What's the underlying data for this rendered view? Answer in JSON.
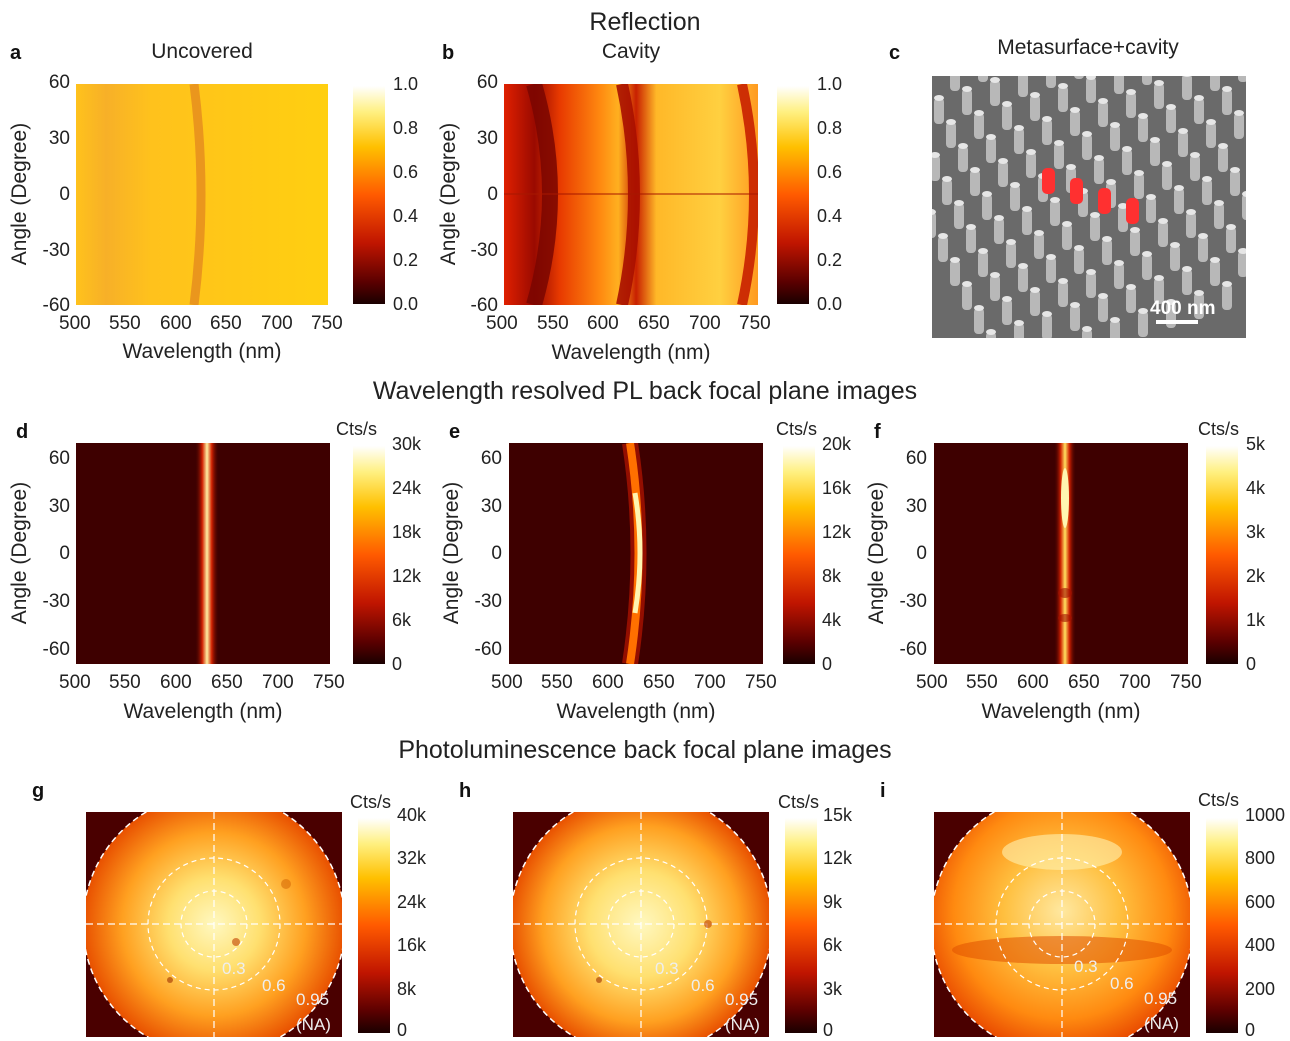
{
  "sections": {
    "reflection": "Reflection",
    "wl_resolved": "Wavelength resolved PL back focal plane images",
    "pl_bfp": "Photoluminescence back focal plane images"
  },
  "panels": {
    "a": {
      "label": "a",
      "title": "Uncovered"
    },
    "b": {
      "label": "b",
      "title": "Cavity"
    },
    "c": {
      "label": "c",
      "title": "Metasurface+cavity",
      "scalebar": "400 nm"
    },
    "d": {
      "label": "d"
    },
    "e": {
      "label": "e"
    },
    "f": {
      "label": "f"
    },
    "g": {
      "label": "g"
    },
    "h": {
      "label": "h"
    },
    "i": {
      "label": "i"
    }
  },
  "axes": {
    "xlabel": "Wavelength (nm)",
    "ylabel": "Angle (Degree)",
    "xticks": [
      "500",
      "550",
      "600",
      "650",
      "700",
      "750"
    ],
    "yticks_refl": [
      "60",
      "30",
      "0",
      "-30",
      "-60"
    ],
    "yticks_pl": [
      "60",
      "30",
      "0",
      "-30",
      "-60"
    ]
  },
  "colorbars": {
    "reflection": [
      "1.0",
      "0.8",
      "0.6",
      "0.4",
      "0.2",
      "0.0"
    ],
    "unit": "Cts/s",
    "d": [
      "30k",
      "24k",
      "18k",
      "12k",
      "6k",
      "0"
    ],
    "e": [
      "20k",
      "16k",
      "12k",
      "8k",
      "4k",
      "0"
    ],
    "f": [
      "5k",
      "4k",
      "3k",
      "2k",
      "1k",
      "0"
    ],
    "g": [
      "40k",
      "32k",
      "24k",
      "16k",
      "8k",
      "0"
    ],
    "h": [
      "15k",
      "12k",
      "9k",
      "6k",
      "3k",
      "0"
    ],
    "i": [
      "1000",
      "800",
      "600",
      "400",
      "200",
      "0"
    ]
  },
  "na_labels": [
    "0.3",
    "0.6",
    "0.95",
    "(NA)"
  ],
  "chart_data": [
    {
      "type": "heatmap",
      "panel": "a",
      "title": "Uncovered",
      "xlabel": "Wavelength (nm)",
      "ylabel": "Angle (Degree)",
      "xlim": [
        500,
        750
      ],
      "ylim": [
        -60,
        60
      ],
      "colorbar_range": [
        0,
        1.0
      ],
      "features": [
        {
          "dip_wavelength_at_0deg": 625
        }
      ]
    },
    {
      "type": "heatmap",
      "panel": "b",
      "title": "Cavity",
      "xlabel": "Wavelength (nm)",
      "ylabel": "Angle (Degree)",
      "xlim": [
        500,
        750
      ],
      "ylim": [
        -60,
        60
      ],
      "colorbar_range": [
        0,
        1.0
      ],
      "features": [
        {
          "dip_wavelength_at_0deg": 530
        },
        {
          "dip_wavelength_at_0deg": 630
        },
        {
          "dip_wavelength_at_0deg": 745
        }
      ]
    },
    {
      "type": "heatmap",
      "panel": "d",
      "xlabel": "Wavelength (nm)",
      "ylabel": "Angle (Degree)",
      "xlim": [
        500,
        750
      ],
      "ylim": [
        -70,
        70
      ],
      "colorbar_range": [
        0,
        30000
      ],
      "features": [
        {
          "emission_peak_nm": 630
        }
      ]
    },
    {
      "type": "heatmap",
      "panel": "e",
      "xlabel": "Wavelength (nm)",
      "ylabel": "Angle (Degree)",
      "xlim": [
        500,
        750
      ],
      "ylim": [
        -70,
        70
      ],
      "colorbar_range": [
        0,
        20000
      ],
      "features": [
        {
          "emission_peak_nm": 632
        }
      ]
    },
    {
      "type": "heatmap",
      "panel": "f",
      "xlabel": "Wavelength (nm)",
      "ylabel": "Angle (Degree)",
      "xlim": [
        500,
        750
      ],
      "ylim": [
        -70,
        70
      ],
      "colorbar_range": [
        0,
        5000
      ],
      "features": [
        {
          "emission_peak_nm": 630
        }
      ]
    },
    {
      "type": "heatmap",
      "panel": "g",
      "colorbar_range": [
        0,
        40000
      ],
      "na_rings": [
        0.3,
        0.6,
        0.95
      ]
    },
    {
      "type": "heatmap",
      "panel": "h",
      "colorbar_range": [
        0,
        15000
      ],
      "na_rings": [
        0.3,
        0.6,
        0.95
      ]
    },
    {
      "type": "heatmap",
      "panel": "i",
      "colorbar_range": [
        0,
        1000
      ],
      "na_rings": [
        0.3,
        0.6,
        0.95
      ]
    }
  ]
}
